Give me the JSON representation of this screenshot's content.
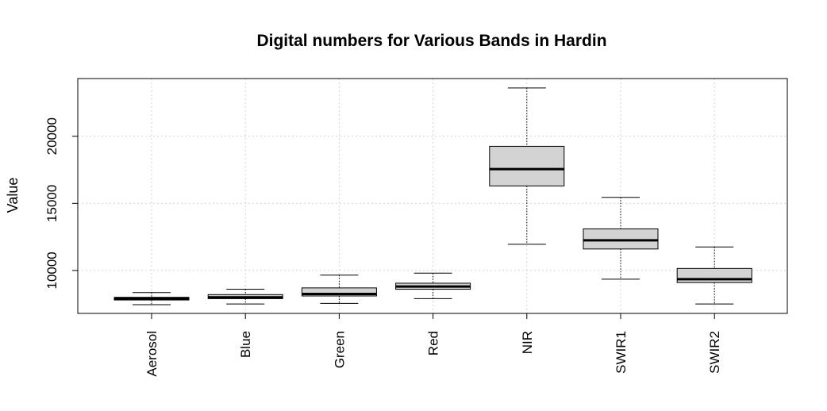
{
  "chart_data": {
    "type": "boxplot",
    "title": "Digital numbers for Various Bands in Hardin",
    "xlabel": "",
    "ylabel": "Value",
    "categories": [
      "Aerosol",
      "Blue",
      "Green",
      "Red",
      "NIR",
      "SWIR1",
      "SWIR2"
    ],
    "boxes": [
      {
        "min": 7450,
        "q1": 7800,
        "median": 7900,
        "q3": 8000,
        "max": 8350
      },
      {
        "min": 7500,
        "q1": 7900,
        "median": 8000,
        "q3": 8200,
        "max": 8600
      },
      {
        "min": 7550,
        "q1": 8100,
        "median": 8250,
        "q3": 8700,
        "max": 9650
      },
      {
        "min": 7900,
        "q1": 8600,
        "median": 8800,
        "q3": 9050,
        "max": 9800
      },
      {
        "min": 11950,
        "q1": 16300,
        "median": 17550,
        "q3": 19250,
        "max": 23600
      },
      {
        "min": 9350,
        "q1": 11600,
        "median": 12250,
        "q3": 13100,
        "max": 15450
      },
      {
        "min": 7500,
        "q1": 9100,
        "median": 9350,
        "q3": 10150,
        "max": 11750
      }
    ],
    "yticks": [
      10000,
      15000,
      20000
    ],
    "ylim": [
      6800,
      24300
    ],
    "grid": true,
    "colors": {
      "box_fill": "#d3d3d3",
      "grid": "#d3d3d3",
      "line": "#000000"
    }
  }
}
